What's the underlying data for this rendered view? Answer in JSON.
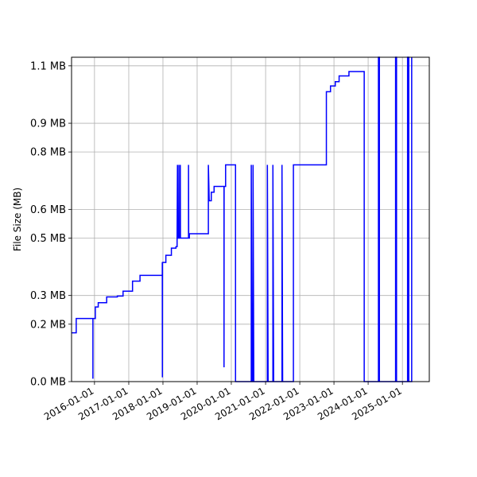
{
  "chart_data": {
    "type": "line",
    "ylabel": "File Size (MB)",
    "xlabel": "",
    "title": "",
    "grid": true,
    "line_color": "#0000ff",
    "x_ticks": [
      "2016-01-01",
      "2017-01-01",
      "2018-01-01",
      "2019-01-01",
      "2020-01-01",
      "2021-01-01",
      "2022-01-01",
      "2023-01-01",
      "2024-01-01",
      "2025-01-01"
    ],
    "y_ticks": [
      {
        "value": 0.0,
        "label": "0.0 MB"
      },
      {
        "value": 0.2,
        "label": "0.2 MB"
      },
      {
        "value": 0.3,
        "label": "0.3 MB"
      },
      {
        "value": 0.5,
        "label": "0.5 MB"
      },
      {
        "value": 0.6,
        "label": "0.6 MB"
      },
      {
        "value": 0.8,
        "label": "0.8 MB"
      },
      {
        "value": 0.9,
        "label": "0.9 MB"
      },
      {
        "value": 1.1,
        "label": "1.1 MB"
      }
    ],
    "xlim": [
      "2015-05-01",
      "2025-10-15"
    ],
    "ylim": [
      0,
      1.13
    ],
    "series": [
      {
        "points": [
          [
            "2015-05-01",
            0.17
          ],
          [
            "2015-06-20",
            0.17
          ],
          [
            "2015-06-20",
            0.22
          ],
          [
            "2015-12-15",
            0.22
          ],
          [
            "2015-12-15",
            0.01
          ],
          [
            "2015-12-15",
            0.22
          ],
          [
            "2016-01-10",
            0.22
          ],
          [
            "2016-01-10",
            0.26
          ],
          [
            "2016-02-10",
            0.26
          ],
          [
            "2016-02-10",
            0.275
          ],
          [
            "2016-05-10",
            0.275
          ],
          [
            "2016-05-10",
            0.295
          ],
          [
            "2016-09-01",
            0.295
          ],
          [
            "2016-09-01",
            0.298
          ],
          [
            "2016-11-01",
            0.298
          ],
          [
            "2016-11-01",
            0.315
          ],
          [
            "2017-02-10",
            0.315
          ],
          [
            "2017-02-10",
            0.35
          ],
          [
            "2017-05-01",
            0.35
          ],
          [
            "2017-05-01",
            0.37
          ],
          [
            "2017-12-25",
            0.37
          ],
          [
            "2017-12-25",
            0.415
          ],
          [
            "2017-12-26",
            0.015
          ],
          [
            "2017-12-27",
            0.415
          ],
          [
            "2018-02-01",
            0.415
          ],
          [
            "2018-02-01",
            0.44
          ],
          [
            "2018-04-01",
            0.44
          ],
          [
            "2018-04-01",
            0.465
          ],
          [
            "2018-05-20",
            0.465
          ],
          [
            "2018-05-20",
            0.47
          ],
          [
            "2018-06-01",
            0.47
          ],
          [
            "2018-06-01",
            0.5
          ],
          [
            "2018-06-05",
            0.755
          ],
          [
            "2018-06-08",
            0.5
          ],
          [
            "2018-06-20",
            0.5
          ],
          [
            "2018-06-20",
            0.755
          ],
          [
            "2018-06-22",
            0.5
          ],
          [
            "2018-07-05",
            0.5
          ],
          [
            "2018-07-05",
            0.755
          ],
          [
            "2018-07-07",
            0.5
          ],
          [
            "2018-10-01",
            0.5
          ],
          [
            "2018-10-01",
            0.755
          ],
          [
            "2018-10-03",
            0.5
          ],
          [
            "2018-10-10",
            0.5
          ],
          [
            "2018-10-10",
            0.515
          ],
          [
            "2019-05-01",
            0.515
          ],
          [
            "2019-05-01",
            0.755
          ],
          [
            "2019-05-10",
            0.63
          ],
          [
            "2019-06-01",
            0.63
          ],
          [
            "2019-06-01",
            0.66
          ],
          [
            "2019-07-01",
            0.66
          ],
          [
            "2019-07-01",
            0.68
          ],
          [
            "2019-10-15",
            0.68
          ],
          [
            "2019-10-15",
            0.05
          ],
          [
            "2019-10-16",
            0.68
          ],
          [
            "2019-11-01",
            0.68
          ],
          [
            "2019-11-01",
            0.755
          ],
          [
            "2020-02-15",
            0.755
          ],
          [
            "2020-02-15",
            0.0
          ],
          [
            "2020-08-01",
            0.0
          ],
          [
            "2020-08-01",
            0.755
          ],
          [
            "2020-08-10",
            0.0
          ],
          [
            "2020-08-20",
            0.0
          ],
          [
            "2020-08-20",
            0.755
          ],
          [
            "2020-08-28",
            0.0
          ],
          [
            "2021-01-20",
            0.0
          ],
          [
            "2021-01-20",
            0.755
          ],
          [
            "2021-01-28",
            0.0
          ],
          [
            "2021-03-20",
            0.0
          ],
          [
            "2021-03-20",
            0.755
          ],
          [
            "2021-03-28",
            0.0
          ],
          [
            "2021-06-25",
            0.0
          ],
          [
            "2021-06-25",
            0.755
          ],
          [
            "2021-07-02",
            0.0
          ],
          [
            "2021-10-25",
            0.0
          ],
          [
            "2021-10-25",
            0.755
          ],
          [
            "2022-02-01",
            0.755
          ],
          [
            "2022-02-01",
            0.755
          ],
          [
            "2022-10-12",
            0.755
          ],
          [
            "2022-10-12",
            1.01
          ],
          [
            "2022-11-25",
            1.01
          ],
          [
            "2022-11-25",
            1.03
          ],
          [
            "2023-01-15",
            1.03
          ],
          [
            "2023-01-15",
            1.045
          ],
          [
            "2023-02-25",
            1.045
          ],
          [
            "2023-02-25",
            1.065
          ],
          [
            "2023-06-10",
            1.065
          ],
          [
            "2023-06-10",
            1.08
          ],
          [
            "2023-11-20",
            1.08
          ],
          [
            "2023-11-20",
            0.0
          ],
          [
            "2024-04-20",
            0.0
          ],
          [
            "2024-04-20",
            1.13
          ],
          [
            "2024-04-30",
            1.13
          ],
          [
            "2024-04-30",
            0.0
          ],
          [
            "2024-10-20",
            0.0
          ],
          [
            "2024-10-20",
            1.13
          ],
          [
            "2024-10-30",
            1.13
          ],
          [
            "2024-10-30",
            0.0
          ],
          [
            "2025-02-25",
            0.0
          ],
          [
            "2025-02-25",
            1.13
          ],
          [
            "2025-03-10",
            1.13
          ],
          [
            "2025-03-10",
            0.0
          ],
          [
            "2025-04-10",
            0.0
          ],
          [
            "2025-04-10",
            1.13
          ]
        ]
      }
    ]
  }
}
